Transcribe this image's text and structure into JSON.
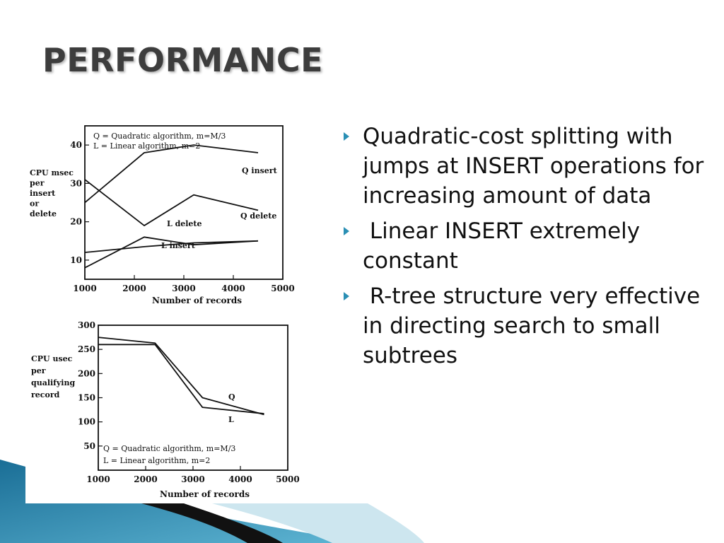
{
  "slide": {
    "title": "PERFORMANCE"
  },
  "bullets": [
    {
      "text": "Quadratic-cost splitting with jumps at INSERT operations for increasing amount of data"
    },
    {
      "text": " Linear INSERT extremely constant"
    },
    {
      "text": " R-tree structure very effective in directing search to small subtrees"
    }
  ],
  "colors": {
    "accent": "#2a8fb4",
    "deco_dark": "#111111",
    "deco_light": "#bfe0ec"
  },
  "chart_data": [
    {
      "type": "line",
      "title": "",
      "xlabel": "Number of records",
      "ylabel_lines": [
        "CPU msec",
        "per",
        "insert",
        "or",
        "delete"
      ],
      "xlim": [
        1000,
        5000
      ],
      "ylim": [
        5,
        45
      ],
      "x_ticks": [
        "1000",
        "2000",
        "3000",
        "4000",
        "5000"
      ],
      "y_ticks": [
        10,
        20,
        30,
        40
      ],
      "legend": [
        "Q = Quadratic algorithm, m=M/3",
        "L = Linear algorithm, m=2"
      ],
      "legend_position": "top-left",
      "grid": false,
      "series": [
        {
          "name": "Q insert",
          "x": [
            1000,
            2200,
            3200,
            4500
          ],
          "y": [
            25,
            38,
            40,
            38
          ]
        },
        {
          "name": "Q delete",
          "x": [
            1000,
            2200,
            3200,
            4500
          ],
          "y": [
            31,
            19,
            27,
            23
          ]
        },
        {
          "name": "L delete",
          "x": [
            1000,
            2200,
            3200,
            4500
          ],
          "y": [
            8,
            16,
            14,
            15
          ]
        },
        {
          "name": "L insert",
          "x": [
            1000,
            2200,
            3200,
            4500
          ],
          "y": [
            12,
            13.5,
            14.5,
            15
          ]
        }
      ]
    },
    {
      "type": "line",
      "title": "",
      "xlabel": "Number of records",
      "ylabel_lines": [
        "CPU usec",
        "per",
        "qualifying",
        "record"
      ],
      "xlim": [
        1000,
        5000
      ],
      "ylim": [
        0,
        300
      ],
      "x_ticks": [
        "1000",
        "2000",
        "3000",
        "4000",
        "5000"
      ],
      "y_ticks": [
        50,
        100,
        150,
        200,
        250,
        300
      ],
      "legend": [
        "Q = Quadratic algorithm, m=M/3",
        "L = Linear algorithm, m=2"
      ],
      "legend_position": "bottom-left",
      "grid": false,
      "series": [
        {
          "name": "Q",
          "x": [
            1000,
            2200,
            3200,
            4500
          ],
          "y": [
            275,
            263,
            150,
            115
          ]
        },
        {
          "name": "L",
          "x": [
            1000,
            2200,
            3200,
            4500
          ],
          "y": [
            260,
            260,
            130,
            117
          ]
        }
      ]
    }
  ]
}
